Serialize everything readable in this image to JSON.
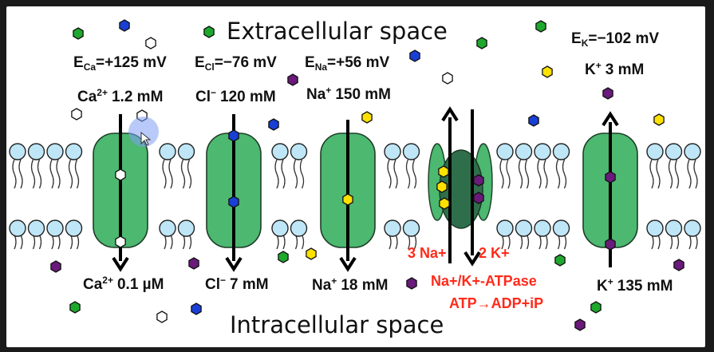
{
  "regions": {
    "top": "Extracellular space",
    "bottom": "Intracellular space"
  },
  "channels": [
    {
      "id": "ca",
      "e_sym": "E",
      "e_sub": "Ca",
      "e_val": "=+125 mV",
      "ion": "Ca",
      "charge": "2+",
      "out_conc": "1.2 mM",
      "in_conc": "0.1 µM",
      "ion_color": "#ffffff"
    },
    {
      "id": "cl",
      "e_sym": "E",
      "e_sub": "Cl",
      "e_val": "=−76 mV",
      "ion": "Cl",
      "charge": "−",
      "out_conc": "120 mM",
      "in_conc": "7 mM",
      "ion_color": "#1a3fd6"
    },
    {
      "id": "na",
      "e_sym": "E",
      "e_sub": "Na",
      "e_val": "=+56 mV",
      "ion": "Na",
      "charge": "+",
      "out_conc": "150 mM",
      "in_conc": "18 mM",
      "ion_color": "#ffe100"
    },
    {
      "id": "k",
      "e_sym": "E",
      "e_sub": "K",
      "e_val": "=−102 mV",
      "ion": "K",
      "charge": "+",
      "out_conc": "3 mM",
      "in_conc": "135 mM",
      "ion_color": "#6a1a7a"
    }
  ],
  "pump": {
    "na_label": "3 Na+",
    "k_label": "2 K+",
    "name": "Na+/K+-ATPase",
    "reaction": "ATP→ADP+iP",
    "label_color": "#ff2a1a"
  },
  "colors": {
    "channel": "#4cb870",
    "pump_core": "#2f6e4a",
    "lipid_head": "#bfe6f6",
    "green_ion": "#1ea82e",
    "blue_ion": "#1a3fd6",
    "yellow_ion": "#ffe100",
    "purple_ion": "#6a1a7a"
  }
}
